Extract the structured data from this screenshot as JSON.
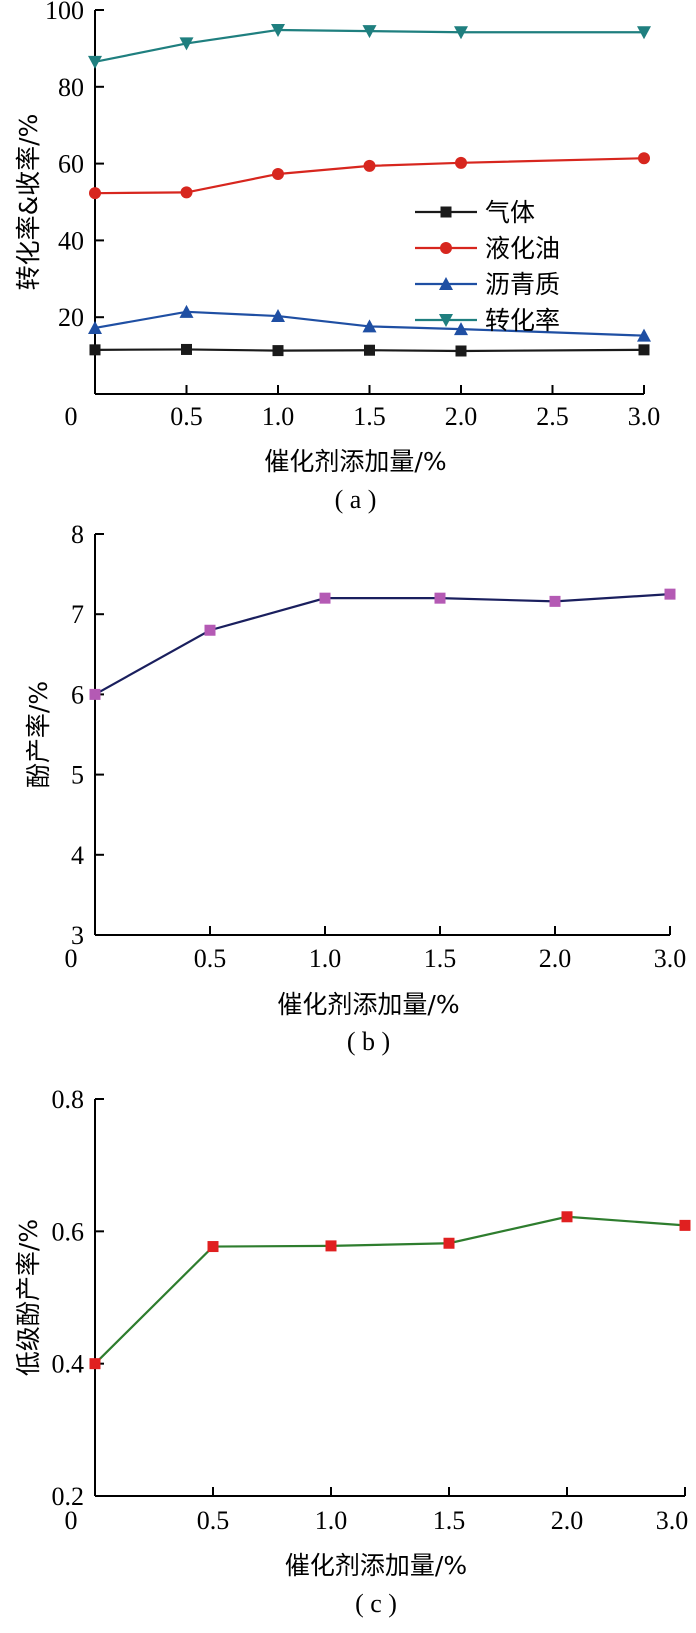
{
  "chart_data": [
    {
      "type": "line",
      "panel_label": "( a )",
      "xlabel": "催化剂添加量/%",
      "ylabel": "转化率&收率/%",
      "x": [
        0,
        0.5,
        1.0,
        1.5,
        2.0,
        3.0
      ],
      "xticks": [
        "0",
        "0.5",
        "1.0",
        "1.5",
        "2.0",
        "2.5",
        "3.0"
      ],
      "xtick_values": [
        0,
        0.5,
        1.0,
        1.5,
        2.0,
        2.5,
        3.0
      ],
      "yticks": [
        "20",
        "40",
        "60",
        "80",
        "100"
      ],
      "ytick_values": [
        20,
        40,
        60,
        80,
        100
      ],
      "xlim": [
        0,
        3.0
      ],
      "ylim": [
        0,
        100
      ],
      "legend_position": "right-middle",
      "series": [
        {
          "name": "气体",
          "values": [
            11.5,
            11.6,
            11.3,
            11.4,
            11.2,
            11.5
          ],
          "color": "#1a1a1a",
          "marker": "square"
        },
        {
          "name": "液化油",
          "values": [
            52.3,
            52.5,
            57.3,
            59.4,
            60.2,
            61.4
          ],
          "color": "#d7261e",
          "marker": "circle"
        },
        {
          "name": "沥青质",
          "values": [
            17.2,
            21.4,
            20.3,
            17.6,
            16.9,
            15.2
          ],
          "color": "#1f4fa3",
          "marker": "triangle-up"
        },
        {
          "name": "转化率",
          "values": [
            86.5,
            91.3,
            94.8,
            94.5,
            94.2,
            94.2
          ],
          "color": "#1f7f7f",
          "marker": "triangle-down"
        }
      ]
    },
    {
      "type": "line",
      "panel_label": "( b )",
      "xlabel": "催化剂添加量/%",
      "ylabel": "酚产率/%",
      "x": [
        0,
        0.5,
        1.0,
        1.5,
        2.0,
        3.0
      ],
      "xticks": [
        "0",
        "0.5",
        "1.0",
        "1.5",
        "2.0",
        "3.0"
      ],
      "xtick_values": [
        0,
        0.5,
        1.0,
        1.5,
        2.0,
        3.0
      ],
      "yticks": [
        "3",
        "4",
        "5",
        "6",
        "7",
        "8"
      ],
      "ytick_values": [
        3,
        4,
        5,
        6,
        7,
        8
      ],
      "xlim": [
        0,
        3.0
      ],
      "ylim": [
        3,
        8
      ],
      "x_ticks_evenly_spaced": true,
      "series": [
        {
          "values": [
            6.0,
            6.8,
            7.2,
            7.2,
            7.16,
            7.25
          ],
          "color": "#1a1f5e",
          "marker_color": "#b45ab4",
          "marker": "square"
        }
      ]
    },
    {
      "type": "line",
      "panel_label": "( c )",
      "xlabel": "催化剂添加量/%",
      "ylabel": "低级酚产率/%",
      "x": [
        0,
        0.5,
        1.0,
        1.5,
        2.0,
        3.0
      ],
      "xticks": [
        "0",
        "0.5",
        "1.0",
        "1.5",
        "2.0",
        "3.0"
      ],
      "xtick_values": [
        0,
        0.5,
        1.0,
        1.5,
        2.0,
        3.0
      ],
      "yticks": [
        "0.2",
        "0.4",
        "0.6",
        "0.8"
      ],
      "ytick_values": [
        0.2,
        0.4,
        0.6,
        0.8
      ],
      "xlim": [
        0,
        3.0
      ],
      "ylim": [
        0.2,
        0.8
      ],
      "x_ticks_evenly_spaced": true,
      "series": [
        {
          "values": [
            0.4,
            0.577,
            0.578,
            0.582,
            0.622,
            0.609
          ],
          "color": "#2e7d2e",
          "marker_color": "#e02020",
          "marker": "square"
        }
      ]
    }
  ]
}
